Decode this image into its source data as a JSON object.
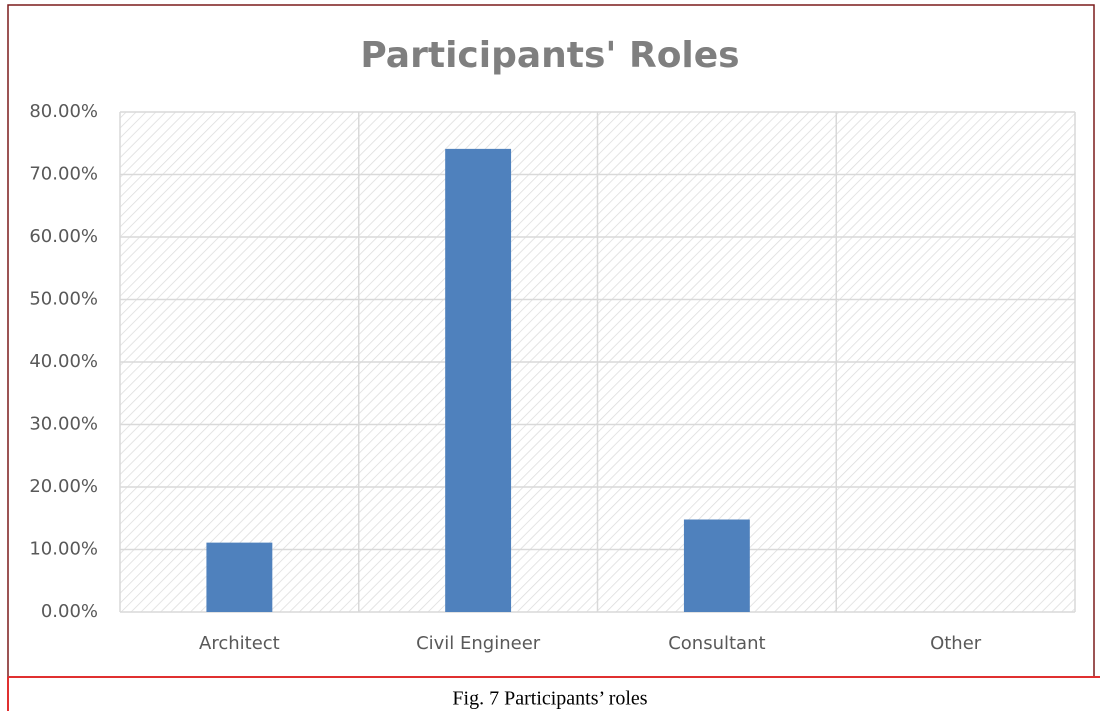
{
  "chart_data": {
    "type": "bar",
    "title": "Participants' Roles",
    "categories": [
      "Architect",
      "Civil Engineer",
      "Consultant",
      "Other"
    ],
    "values": [
      11.1,
      74.1,
      14.8,
      0
    ],
    "color": "#4f81bd",
    "ylim": [
      0,
      80
    ],
    "yticks": [
      {
        "value": 0,
        "label": "0.00%"
      },
      {
        "value": 10,
        "label": "10.00%"
      },
      {
        "value": 20,
        "label": "20.00%"
      },
      {
        "value": 30,
        "label": "30.00%"
      },
      {
        "value": 40,
        "label": "40.00%"
      },
      {
        "value": 50,
        "label": "50.00%"
      },
      {
        "value": 60,
        "label": "60.00%"
      },
      {
        "value": 70,
        "label": "70.00%"
      },
      {
        "value": 80,
        "label": "80.00%"
      }
    ],
    "grid": true
  },
  "caption": "Fig. 7 Participants’ roles"
}
